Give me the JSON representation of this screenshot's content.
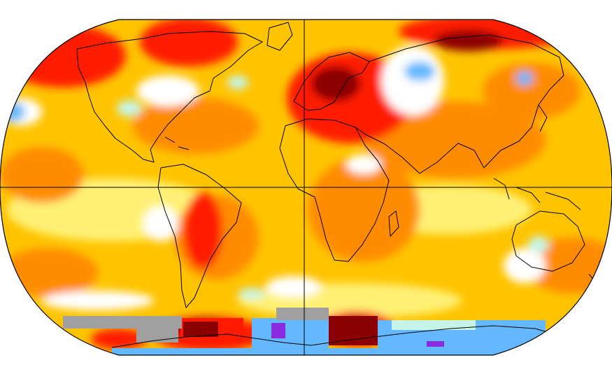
{
  "map": {
    "projection": "robinson",
    "palette": {
      "background": "#ffffff",
      "base_warm": "#ffc400",
      "light_yellow": "#fff176",
      "orange": "#ff8c00",
      "red": "#ff1a00",
      "dark_red": "#8b0000",
      "white": "#ffffff",
      "light_cyan": "#c6f5e8",
      "sky_blue": "#63b8ff",
      "purple": "#8a2be2",
      "gray_missing": "#a0a0a0",
      "coastline": "#000000",
      "grid_line": "#000000"
    },
    "gridlines": [
      "equator",
      "prime-meridian"
    ]
  }
}
